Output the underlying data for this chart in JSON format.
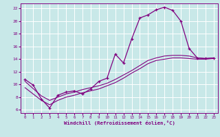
{
  "background_color": "#c8e8e8",
  "plot_bg_color": "#c8e8e8",
  "grid_color": "#ffffff",
  "line_color": "#800080",
  "spine_color": "#800080",
  "tick_color": "#800080",
  "xlabel": "Windchill (Refroidissement éolien,°C)",
  "xlim": [
    -0.5,
    23.5
  ],
  "ylim": [
    5.5,
    22.8
  ],
  "yticks": [
    6,
    8,
    10,
    12,
    14,
    16,
    18,
    20,
    22
  ],
  "xticks": [
    0,
    1,
    2,
    3,
    4,
    5,
    6,
    7,
    8,
    9,
    10,
    11,
    12,
    13,
    14,
    15,
    16,
    17,
    18,
    19,
    20,
    21,
    22,
    23
  ],
  "curve1_x": [
    0,
    1,
    2,
    3,
    4,
    5,
    6,
    7,
    8,
    9,
    10,
    11,
    12,
    13,
    14,
    15,
    16,
    17,
    18,
    19,
    20,
    21,
    22,
    23
  ],
  "curve1_y": [
    10.8,
    9.9,
    7.7,
    6.3,
    8.3,
    8.8,
    9.0,
    8.5,
    9.3,
    10.5,
    11.0,
    14.8,
    13.4,
    17.2,
    20.5,
    21.0,
    21.8,
    22.2,
    21.7,
    20.0,
    15.7,
    14.2,
    14.1,
    14.2
  ],
  "curve2_x": [
    0,
    2,
    3,
    4,
    5,
    6,
    7,
    8,
    9,
    10,
    11,
    12,
    13,
    14,
    15,
    16,
    17,
    18,
    19,
    20,
    21,
    22,
    23
  ],
  "curve2_y": [
    10.5,
    8.2,
    7.5,
    8.0,
    8.5,
    8.8,
    9.2,
    9.5,
    9.8,
    10.2,
    10.8,
    11.5,
    12.2,
    13.0,
    13.8,
    14.2,
    14.5,
    14.6,
    14.6,
    14.5,
    14.2,
    14.1,
    14.2
  ],
  "curve3_x": [
    0,
    2,
    3,
    4,
    5,
    6,
    7,
    8,
    9,
    10,
    11,
    12,
    13,
    14,
    15,
    16,
    17,
    18,
    19,
    20,
    21,
    22,
    23
  ],
  "curve3_y": [
    9.5,
    7.5,
    6.8,
    7.5,
    8.0,
    8.3,
    8.7,
    9.0,
    9.3,
    9.8,
    10.3,
    11.0,
    11.8,
    12.5,
    13.3,
    13.8,
    14.0,
    14.2,
    14.2,
    14.1,
    14.0,
    14.0,
    14.1
  ]
}
